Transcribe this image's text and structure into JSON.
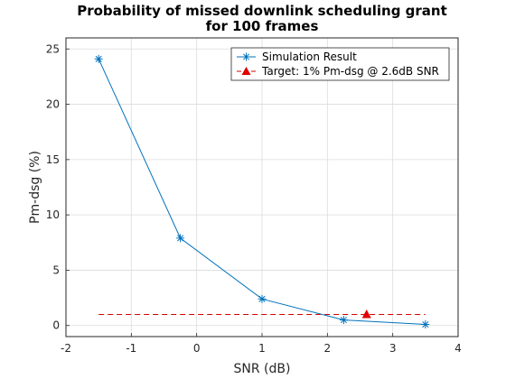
{
  "chart_data": {
    "type": "line",
    "title_line1": "Probability of missed downlink scheduling grant",
    "title_line2": "for 100 frames",
    "xlabel": "SNR (dB)",
    "ylabel": "Pm-dsg (%)",
    "xlim": [
      -2,
      4
    ],
    "ylim": [
      -1,
      26
    ],
    "xticks": [
      -2,
      -1,
      0,
      1,
      2,
      3,
      4
    ],
    "yticks": [
      0,
      5,
      10,
      15,
      20,
      25
    ],
    "grid": true,
    "legend_location": "top-right",
    "series": [
      {
        "name": "Simulation Result",
        "style": "line-with-asterisk-markers",
        "color": "#0072BD",
        "x": [
          -1.5,
          -0.25,
          1.0,
          2.25,
          3.5
        ],
        "y": [
          24.1,
          7.9,
          2.4,
          0.5,
          0.1
        ]
      },
      {
        "name": "Target: 1% Pm-dsg @ 2.6dB SNR",
        "style": "dashed-line-with-triangle-marker",
        "color": "#D40000",
        "x": [
          -1.5,
          3.5
        ],
        "y": [
          1,
          1
        ],
        "marker_x": 2.6,
        "marker_y": 1
      }
    ]
  }
}
